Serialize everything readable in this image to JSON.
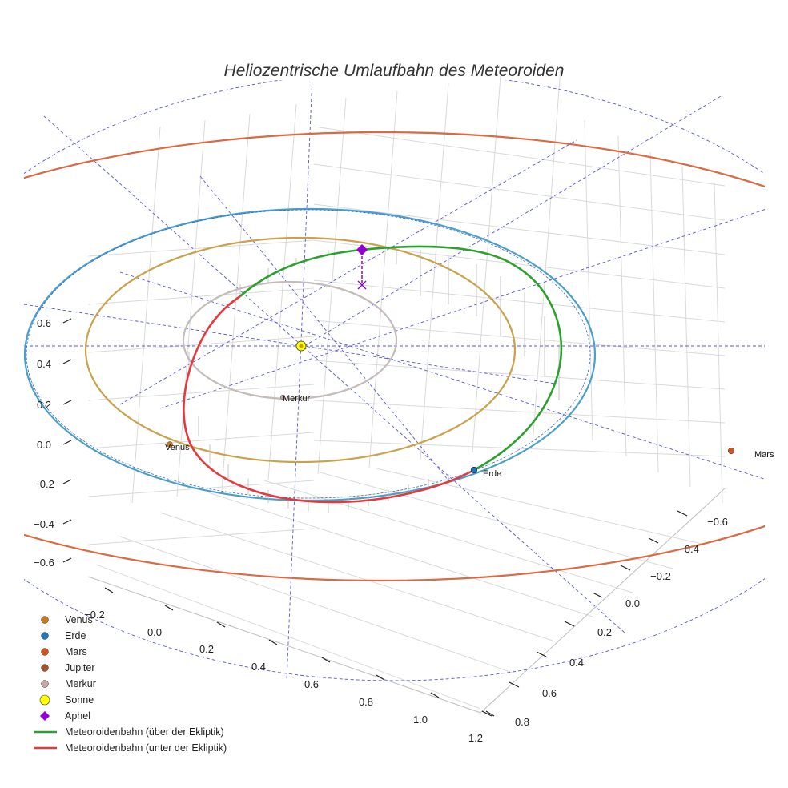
{
  "chart_data": {
    "type": "scatter3d",
    "title": "Heliozentrische Umlaufbahn des Meteoroiden",
    "axes": {
      "x": {
        "range": [
          -0.3,
          1.25
        ],
        "ticks": [
          "−0.2",
          "0.0",
          "0.2",
          "0.4",
          "0.6",
          "0.8",
          "1.0",
          "1.2"
        ]
      },
      "y": {
        "range": [
          -0.7,
          0.9
        ],
        "ticks": [
          "−0.6",
          "−0.4",
          "−0.2",
          "0.0",
          "0.2",
          "0.4",
          "0.6",
          "0.8"
        ]
      },
      "z": {
        "range": [
          -0.7,
          0.7
        ],
        "ticks": [
          "0.6",
          "0.4",
          "0.2",
          "0.0",
          "−0.2",
          "−0.4",
          "−0.6"
        ]
      },
      "grid": true
    },
    "colors": {
      "venus": "#c9a24c",
      "erde": "#4a9fc8",
      "erde_marker": "#1f77b4",
      "mars": "#d96a43",
      "merkur": "#c4bcb8",
      "sonne": "#ffff00",
      "aphel": "#9400d3",
      "above": "#2ca02c",
      "below": "#e5393b",
      "ecliptic_grid": "#5555dd"
    },
    "planet_labels": [
      {
        "id": "venus",
        "text": "Venus"
      },
      {
        "id": "erde",
        "text": "Erde"
      },
      {
        "id": "mars",
        "text": "Mars"
      },
      {
        "id": "merkur",
        "text": "Merkur"
      }
    ],
    "legend": [
      {
        "id": "venus",
        "label": "Venus",
        "marker": "circle",
        "color": "#c87a1f"
      },
      {
        "id": "erde",
        "label": "Erde",
        "marker": "circle",
        "color": "#1f77b4"
      },
      {
        "id": "mars",
        "label": "Mars",
        "marker": "circle",
        "color": "#d0541f"
      },
      {
        "id": "jupiter",
        "label": "Jupiter",
        "marker": "circle",
        "color": "#a0522d"
      },
      {
        "id": "merkur",
        "label": "Merkur",
        "marker": "circle",
        "color": "#c4a7a0"
      },
      {
        "id": "sonne",
        "label": "Sonne",
        "marker": "big-circle",
        "color": "#ffff00"
      },
      {
        "id": "aphel",
        "label": "Aphel",
        "marker": "diamond",
        "color": "#9400d3"
      },
      {
        "id": "above",
        "label": "Meteoroidenbahn (über der Ekliptik)",
        "marker": "line",
        "color": "#2ca02c"
      },
      {
        "id": "below",
        "label": "Meteoroidenbahn (unter der Ekliptik)",
        "marker": "line",
        "color": "#e5393b"
      }
    ]
  }
}
